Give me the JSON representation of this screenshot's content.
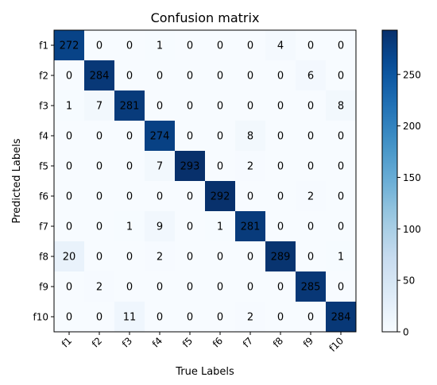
{
  "chart_data": {
    "type": "heatmap",
    "title": "Confusion matrix",
    "xlabel": "True Labels",
    "ylabel": "Predicted Labels",
    "x_labels": [
      "f1",
      "f2",
      "f3",
      "f4",
      "f5",
      "f6",
      "f7",
      "f8",
      "f9",
      "f10"
    ],
    "y_labels": [
      "f1",
      "f2",
      "f3",
      "f4",
      "f5",
      "f6",
      "f7",
      "f8",
      "f9",
      "f10"
    ],
    "matrix": [
      [
        272,
        0,
        0,
        1,
        0,
        0,
        0,
        4,
        0,
        0
      ],
      [
        0,
        284,
        0,
        0,
        0,
        0,
        0,
        0,
        6,
        0
      ],
      [
        1,
        7,
        281,
        0,
        0,
        0,
        0,
        0,
        0,
        8
      ],
      [
        0,
        0,
        0,
        274,
        0,
        0,
        8,
        0,
        0,
        0
      ],
      [
        0,
        0,
        0,
        7,
        293,
        0,
        2,
        0,
        0,
        0
      ],
      [
        0,
        0,
        0,
        0,
        0,
        292,
        0,
        0,
        2,
        0
      ],
      [
        0,
        0,
        1,
        9,
        0,
        1,
        281,
        0,
        0,
        0
      ],
      [
        20,
        0,
        0,
        2,
        0,
        0,
        0,
        289,
        0,
        1
      ],
      [
        0,
        2,
        0,
        0,
        0,
        0,
        0,
        0,
        285,
        0
      ],
      [
        0,
        0,
        11,
        0,
        0,
        0,
        2,
        0,
        0,
        284
      ]
    ],
    "colorbar": {
      "min": 0,
      "max": 293,
      "ticks": [
        0,
        50,
        100,
        150,
        200,
        250
      ]
    },
    "colormap": "Blues",
    "colors": {
      "low": "#f7fbff",
      "high": "#08306b",
      "text_light": "#ffffff",
      "text_dark": "#000000"
    }
  }
}
